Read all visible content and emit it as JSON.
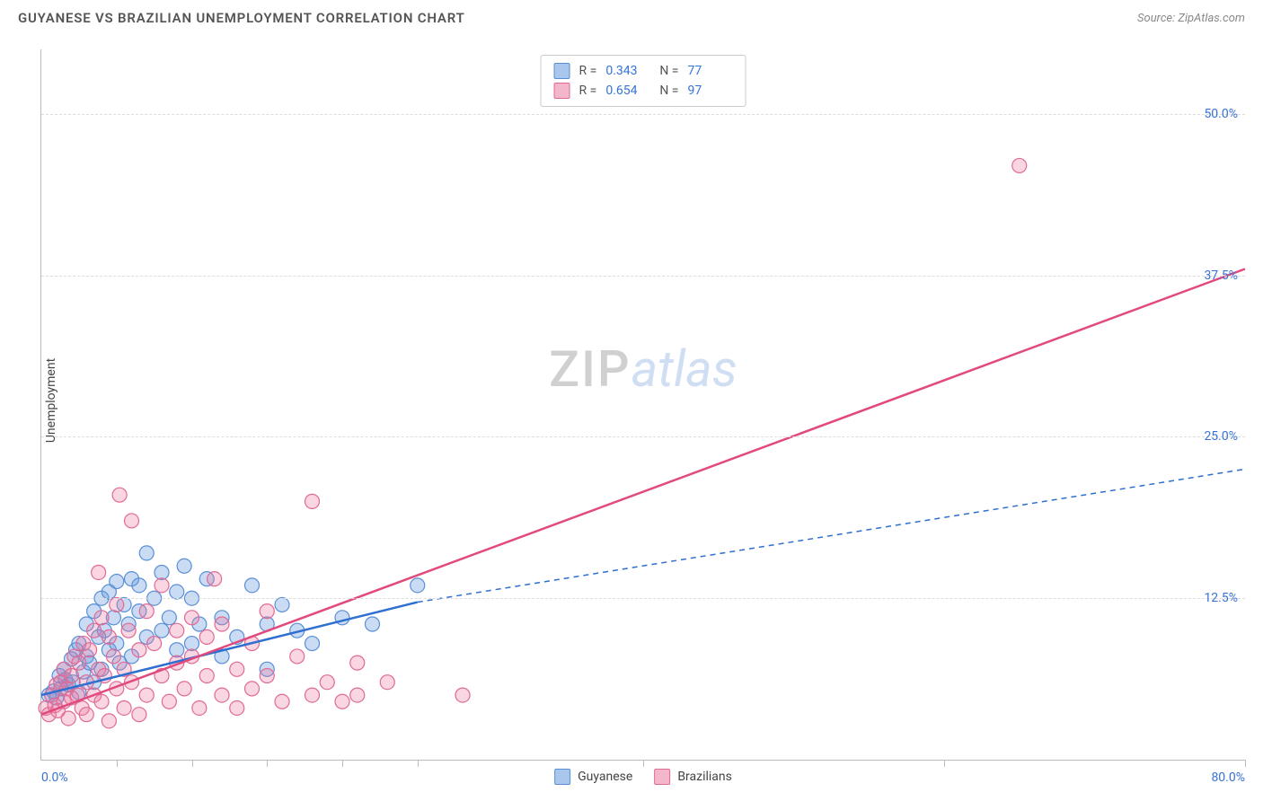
{
  "header": {
    "title": "GUYANESE VS BRAZILIAN UNEMPLOYMENT CORRELATION CHART",
    "source": "Source: ZipAtlas.com"
  },
  "chart": {
    "type": "scatter",
    "ylabel": "Unemployment",
    "background_color": "#ffffff",
    "grid_color": "#dddddd",
    "axis_color": "#bbbbbb",
    "label_color": "#3673d6",
    "text_color": "#444444",
    "xlim": [
      0,
      80
    ],
    "ylim": [
      0,
      55
    ],
    "x_min_label": "0.0%",
    "x_max_label": "80.0%",
    "y_ticks": [
      {
        "v": 12.5,
        "label": "12.5%"
      },
      {
        "v": 25.0,
        "label": "25.0%"
      },
      {
        "v": 37.5,
        "label": "37.5%"
      },
      {
        "v": 50.0,
        "label": "50.0%"
      }
    ],
    "x_tick_positions": [
      5,
      10,
      15,
      20,
      25,
      40,
      60,
      80
    ],
    "marker_radius": 8,
    "marker_stroke_width": 1.2,
    "series": [
      {
        "name": "Guyanese",
        "fill_color": "rgba(99,155,224,0.35)",
        "stroke_color": "#5a8fd6",
        "swatch_fill": "#a9c7ec",
        "swatch_border": "#5a8fd6",
        "R": "0.343",
        "N": "77",
        "trend": {
          "x1": 0,
          "y1": 5.0,
          "x2": 25,
          "y2": 12.2,
          "color": "#2f6fd0",
          "width": 2.5,
          "dash": "none"
        },
        "trend_ext": {
          "x1": 25,
          "y1": 12.2,
          "x2": 80,
          "y2": 22.5,
          "color": "#2f6fd0",
          "width": 1.5,
          "dash": "6 5"
        },
        "points": [
          [
            0.5,
            5.0
          ],
          [
            0.8,
            5.3
          ],
          [
            1.0,
            4.8
          ],
          [
            1.2,
            6.5
          ],
          [
            1.3,
            5.5
          ],
          [
            1.5,
            7.0
          ],
          [
            1.6,
            6.2
          ],
          [
            1.8,
            5.8
          ],
          [
            2.0,
            7.8
          ],
          [
            2.1,
            6.0
          ],
          [
            2.3,
            8.5
          ],
          [
            2.5,
            5.2
          ],
          [
            2.5,
            9.0
          ],
          [
            2.8,
            6.8
          ],
          [
            3.0,
            8.0
          ],
          [
            3.0,
            10.5
          ],
          [
            3.2,
            7.5
          ],
          [
            3.5,
            11.5
          ],
          [
            3.5,
            6.0
          ],
          [
            3.8,
            9.5
          ],
          [
            4.0,
            12.5
          ],
          [
            4.0,
            7.0
          ],
          [
            4.2,
            10.0
          ],
          [
            4.5,
            13.0
          ],
          [
            4.5,
            8.5
          ],
          [
            4.8,
            11.0
          ],
          [
            5.0,
            9.0
          ],
          [
            5.0,
            13.8
          ],
          [
            5.2,
            7.5
          ],
          [
            5.5,
            12.0
          ],
          [
            5.8,
            10.5
          ],
          [
            6.0,
            8.0
          ],
          [
            6.0,
            14.0
          ],
          [
            6.5,
            11.5
          ],
          [
            6.5,
            13.5
          ],
          [
            7.0,
            9.5
          ],
          [
            7.0,
            16.0
          ],
          [
            7.5,
            12.5
          ],
          [
            8.0,
            10.0
          ],
          [
            8.0,
            14.5
          ],
          [
            8.5,
            11.0
          ],
          [
            9.0,
            8.5
          ],
          [
            9.0,
            13.0
          ],
          [
            9.5,
            15.0
          ],
          [
            10.0,
            12.5
          ],
          [
            10.0,
            9.0
          ],
          [
            10.5,
            10.5
          ],
          [
            11.0,
            14.0
          ],
          [
            12.0,
            11.0
          ],
          [
            12.0,
            8.0
          ],
          [
            13.0,
            9.5
          ],
          [
            14.0,
            13.5
          ],
          [
            15.0,
            10.5
          ],
          [
            15.0,
            7.0
          ],
          [
            16.0,
            12.0
          ],
          [
            17.0,
            10.0
          ],
          [
            18.0,
            9.0
          ],
          [
            20.0,
            11.0
          ],
          [
            22.0,
            10.5
          ],
          [
            25.0,
            13.5
          ]
        ]
      },
      {
        "name": "Brazilians",
        "fill_color": "rgba(236,120,160,0.30)",
        "stroke_color": "#e06a95",
        "swatch_fill": "#f4b6cb",
        "swatch_border": "#e06a95",
        "R": "0.654",
        "N": "97",
        "trend": {
          "x1": 0,
          "y1": 3.5,
          "x2": 80,
          "y2": 38.0,
          "color": "#e24a7e",
          "width": 2.5,
          "dash": "none"
        },
        "points": [
          [
            0.3,
            4.0
          ],
          [
            0.5,
            3.5
          ],
          [
            0.7,
            5.0
          ],
          [
            0.9,
            4.2
          ],
          [
            1.0,
            5.8
          ],
          [
            1.1,
            3.8
          ],
          [
            1.3,
            6.0
          ],
          [
            1.5,
            4.5
          ],
          [
            1.5,
            7.0
          ],
          [
            1.7,
            5.5
          ],
          [
            1.8,
            3.2
          ],
          [
            2.0,
            6.5
          ],
          [
            2.0,
            4.8
          ],
          [
            2.2,
            8.0
          ],
          [
            2.4,
            5.0
          ],
          [
            2.5,
            7.5
          ],
          [
            2.7,
            4.0
          ],
          [
            2.8,
            9.0
          ],
          [
            3.0,
            6.0
          ],
          [
            3.0,
            3.5
          ],
          [
            3.2,
            8.5
          ],
          [
            3.5,
            5.0
          ],
          [
            3.5,
            10.0
          ],
          [
            3.8,
            14.5
          ],
          [
            3.8,
            7.0
          ],
          [
            4.0,
            4.5
          ],
          [
            4.0,
            11.0
          ],
          [
            4.2,
            6.5
          ],
          [
            4.5,
            9.5
          ],
          [
            4.5,
            3.0
          ],
          [
            4.8,
            8.0
          ],
          [
            5.0,
            5.5
          ],
          [
            5.0,
            12.0
          ],
          [
            5.2,
            20.5
          ],
          [
            5.5,
            7.0
          ],
          [
            5.5,
            4.0
          ],
          [
            5.8,
            10.0
          ],
          [
            6.0,
            6.0
          ],
          [
            6.0,
            18.5
          ],
          [
            6.5,
            8.5
          ],
          [
            6.5,
            3.5
          ],
          [
            7.0,
            11.5
          ],
          [
            7.0,
            5.0
          ],
          [
            7.5,
            9.0
          ],
          [
            8.0,
            6.5
          ],
          [
            8.0,
            13.5
          ],
          [
            8.5,
            4.5
          ],
          [
            9.0,
            10.0
          ],
          [
            9.0,
            7.5
          ],
          [
            9.5,
            5.5
          ],
          [
            10.0,
            8.0
          ],
          [
            10.0,
            11.0
          ],
          [
            10.5,
            4.0
          ],
          [
            11.0,
            9.5
          ],
          [
            11.0,
            6.5
          ],
          [
            11.5,
            14.0
          ],
          [
            12.0,
            5.0
          ],
          [
            12.0,
            10.5
          ],
          [
            13.0,
            7.0
          ],
          [
            13.0,
            4.0
          ],
          [
            14.0,
            9.0
          ],
          [
            14.0,
            5.5
          ],
          [
            15.0,
            11.5
          ],
          [
            15.0,
            6.5
          ],
          [
            16.0,
            4.5
          ],
          [
            17.0,
            8.0
          ],
          [
            18.0,
            5.0
          ],
          [
            18.0,
            20.0
          ],
          [
            19.0,
            6.0
          ],
          [
            20.0,
            4.5
          ],
          [
            21.0,
            7.5
          ],
          [
            21.0,
            5.0
          ],
          [
            23.0,
            6.0
          ],
          [
            28.0,
            5.0
          ],
          [
            65.0,
            46.0
          ]
        ]
      }
    ],
    "bottom_legend": [
      {
        "label": "Guyanese",
        "fill": "#a9c7ec",
        "border": "#5a8fd6"
      },
      {
        "label": "Brazilians",
        "fill": "#f4b6cb",
        "border": "#e06a95"
      }
    ],
    "watermark": {
      "zip": "ZIP",
      "atlas": "atlas"
    }
  }
}
